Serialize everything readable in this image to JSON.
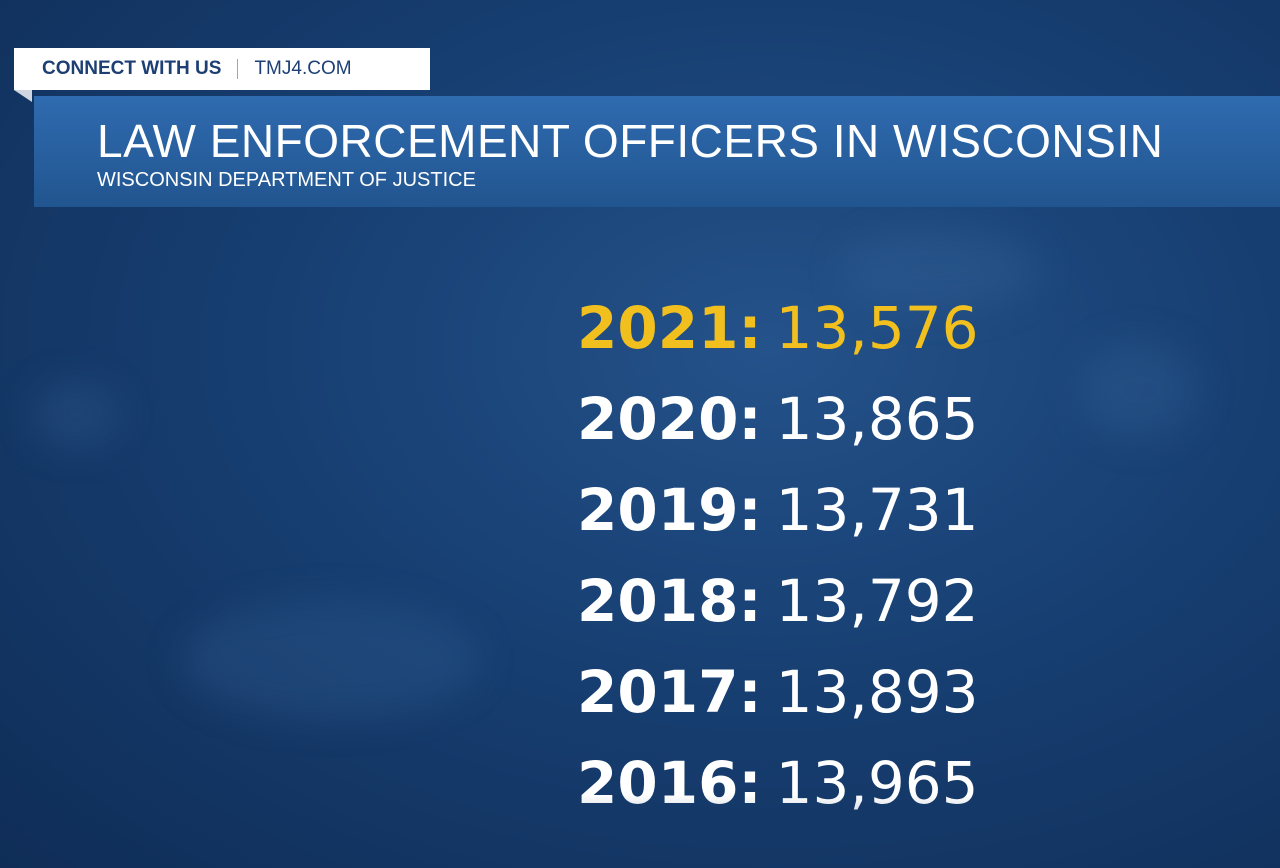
{
  "header": {
    "tag": "CONNECT WITH US",
    "site": "TMJ4.COM",
    "title": "LAW ENFORCEMENT OFFICERS IN WISCONSIN",
    "subtitle": "WISCONSIN DEPARTMENT OF JUSTICE"
  },
  "list": {
    "rows": [
      {
        "year": "2021:",
        "count": "13,576"
      },
      {
        "year": "2020:",
        "count": "13,865"
      },
      {
        "year": "2019:",
        "count": "13,731"
      },
      {
        "year": "2018:",
        "count": "13,792"
      },
      {
        "year": "2017:",
        "count": "13,893"
      },
      {
        "year": "2016:",
        "count": "13,965"
      }
    ]
  }
}
